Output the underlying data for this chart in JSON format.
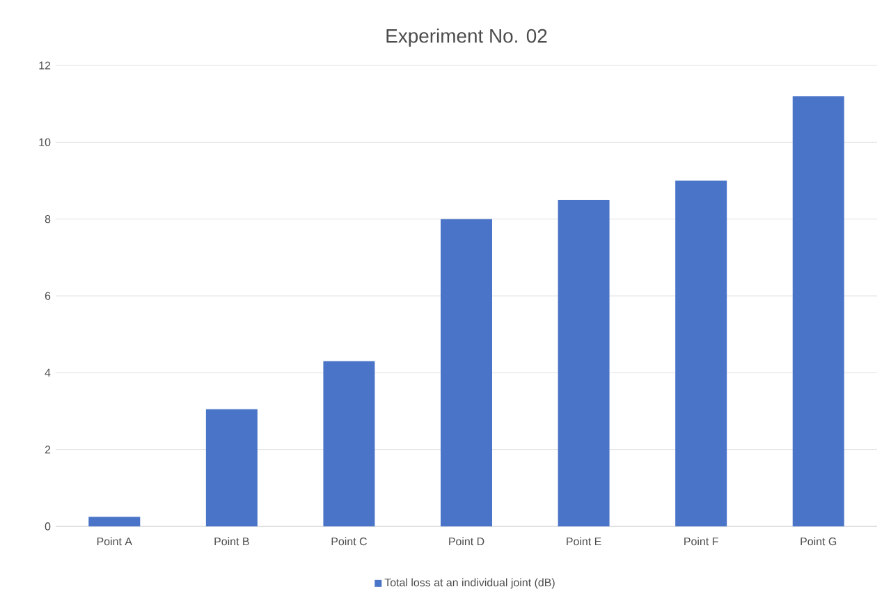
{
  "chart_data": {
    "type": "bar",
    "title": "Experiment No. 02",
    "categories": [
      "Point A",
      "Point B",
      "Point C",
      "Point D",
      "Point E",
      "Point F",
      "Point G"
    ],
    "series": [
      {
        "name": "Total loss at an individual joint (dB)",
        "color": "#4a74c8",
        "values": [
          0.25,
          3.05,
          4.3,
          8.0,
          8.5,
          9.0,
          11.2
        ]
      }
    ],
    "ylim": [
      0,
      12
    ],
    "yticks": [
      0,
      2,
      4,
      6,
      8,
      10,
      12
    ],
    "grid": "y",
    "legend": "bottom"
  }
}
